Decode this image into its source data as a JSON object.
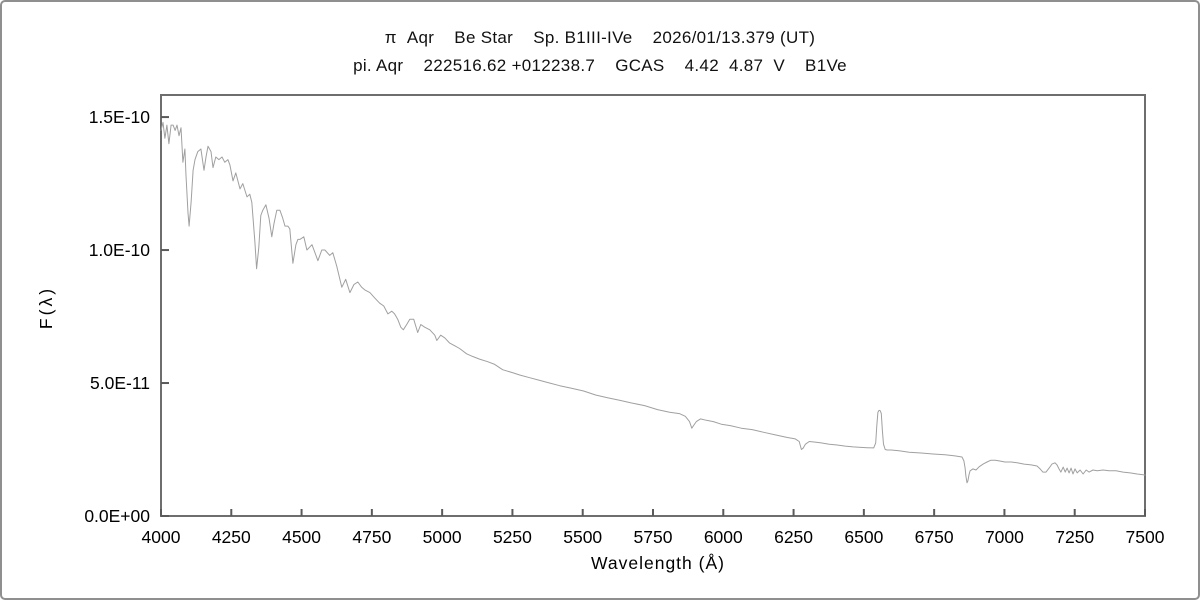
{
  "window": {
    "background": "#ffffff",
    "border_color": "#8f8f8f"
  },
  "header": {
    "title_line1": "π  Aqr    Be Star    Sp. B1III-IVe    2026/01/13.379 (UT)",
    "title_line2": "pi. Aqr    222516.62 +012238.7    GCAS    4.42  4.87  V    B1Ve"
  },
  "chart_data": {
    "type": "line",
    "title": "π Aqr Be Star Sp. B1III-IVe 2026/01/13.379 (UT)",
    "subtitle": "pi. Aqr 222516.62 +012238.7 GCAS 4.42 4.87 V B1Ve",
    "xlabel": "Wavelength (Å)",
    "ylabel": "F(λ)",
    "xlim": [
      4000,
      7500
    ],
    "ylim": [
      0,
      1.583e-10
    ],
    "grid": false,
    "legend": "none",
    "line_color": "#a0a0a0",
    "frame_color": "#6e6e6e",
    "tick_color": "#5a5a5a",
    "x_ticks": [
      4000,
      4250,
      4500,
      4750,
      5000,
      5250,
      5500,
      5750,
      6000,
      6250,
      6500,
      6750,
      7000,
      7250,
      7500
    ],
    "x_tick_labels": [
      "4000",
      "4250",
      "4500",
      "4750",
      "5000",
      "5250",
      "5500",
      "5750",
      "6000",
      "6250",
      "6500",
      "6750",
      "7000",
      "7250",
      "7500"
    ],
    "y_ticks_flux": [
      0,
      5,
      10,
      15
    ],
    "y_tick_labels": [
      "0.0E+00",
      "5.0E-11",
      "1.0E-10",
      "1.5E-10"
    ],
    "flux_scale": 1e-11,
    "features": {
      "absorption_lines": [
        "He I 4026",
        "Hδ 4101",
        "Hγ 4340",
        "He I 4471",
        "Hβ 4861",
        "He I 4922",
        "Na D 5890",
        "telluric 6280",
        "telluric B 6867",
        "telluric H2O 7150-7330"
      ],
      "emission_lines": [
        "Hα 6563"
      ]
    },
    "series": [
      {
        "name": "spectrum",
        "points": [
          [
            4000,
            14.5
          ],
          [
            4007,
            14.8
          ],
          [
            4014,
            14.2
          ],
          [
            4021,
            14.7
          ],
          [
            4028,
            14.0
          ],
          [
            4036,
            14.7
          ],
          [
            4043,
            14.7
          ],
          [
            4050,
            14.5
          ],
          [
            4057,
            14.7
          ],
          [
            4064,
            14.3
          ],
          [
            4071,
            14.6
          ],
          [
            4078,
            13.3
          ],
          [
            4085,
            13.8
          ],
          [
            4089,
            12.8
          ],
          [
            4096,
            11.4
          ],
          [
            4100,
            10.9
          ],
          [
            4107,
            11.8
          ],
          [
            4114,
            13.0
          ],
          [
            4121,
            13.4
          ],
          [
            4131,
            13.7
          ],
          [
            4142,
            13.8
          ],
          [
            4153,
            13.0
          ],
          [
            4160,
            13.5
          ],
          [
            4167,
            13.9
          ],
          [
            4178,
            13.7
          ],
          [
            4185,
            13.1
          ],
          [
            4195,
            13.5
          ],
          [
            4206,
            13.4
          ],
          [
            4217,
            13.5
          ],
          [
            4227,
            13.3
          ],
          [
            4238,
            13.4
          ],
          [
            4245,
            13.2
          ],
          [
            4256,
            12.6
          ],
          [
            4266,
            12.9
          ],
          [
            4281,
            12.3
          ],
          [
            4291,
            12.5
          ],
          [
            4306,
            12.0
          ],
          [
            4316,
            12.1
          ],
          [
            4323,
            11.8
          ],
          [
            4334,
            10.3
          ],
          [
            4340,
            9.3
          ],
          [
            4348,
            10.1
          ],
          [
            4355,
            11.3
          ],
          [
            4362,
            11.5
          ],
          [
            4373,
            11.7
          ],
          [
            4384,
            11.2
          ],
          [
            4394,
            10.5
          ],
          [
            4402,
            11.0
          ],
          [
            4412,
            11.5
          ],
          [
            4423,
            11.5
          ],
          [
            4433,
            11.2
          ],
          [
            4441,
            10.9
          ],
          [
            4451,
            10.9
          ],
          [
            4458,
            10.8
          ],
          [
            4469,
            9.5
          ],
          [
            4480,
            10.2
          ],
          [
            4487,
            10.4
          ],
          [
            4494,
            10.4
          ],
          [
            4508,
            10.5
          ],
          [
            4519,
            10.0
          ],
          [
            4537,
            10.2
          ],
          [
            4558,
            9.6
          ],
          [
            4572,
            10.0
          ],
          [
            4583,
            10.0
          ],
          [
            4600,
            9.8
          ],
          [
            4611,
            9.9
          ],
          [
            4625,
            9.4
          ],
          [
            4643,
            8.6
          ],
          [
            4657,
            8.9
          ],
          [
            4672,
            8.4
          ],
          [
            4686,
            8.7
          ],
          [
            4700,
            8.8
          ],
          [
            4714,
            8.6
          ],
          [
            4725,
            8.5
          ],
          [
            4743,
            8.4
          ],
          [
            4760,
            8.2
          ],
          [
            4778,
            8.0
          ],
          [
            4792,
            7.9
          ],
          [
            4807,
            7.6
          ],
          [
            4821,
            7.7
          ],
          [
            4831,
            7.6
          ],
          [
            4842,
            7.4
          ],
          [
            4853,
            7.1
          ],
          [
            4862,
            7.0
          ],
          [
            4874,
            7.2
          ],
          [
            4885,
            7.4
          ],
          [
            4899,
            7.4
          ],
          [
            4913,
            6.9
          ],
          [
            4924,
            7.2
          ],
          [
            4938,
            7.1
          ],
          [
            4956,
            7.0
          ],
          [
            4974,
            6.8
          ],
          [
            4981,
            6.6
          ],
          [
            4995,
            6.8
          ],
          [
            5009,
            6.7
          ],
          [
            5027,
            6.5
          ],
          [
            5045,
            6.4
          ],
          [
            5062,
            6.3
          ],
          [
            5087,
            6.1
          ],
          [
            5108,
            6.0
          ],
          [
            5133,
            5.9
          ],
          [
            5162,
            5.8
          ],
          [
            5187,
            5.7
          ],
          [
            5215,
            5.5
          ],
          [
            5247,
            5.4
          ],
          [
            5276,
            5.3
          ],
          [
            5311,
            5.2
          ],
          [
            5347,
            5.1
          ],
          [
            5382,
            5.0
          ],
          [
            5418,
            4.9
          ],
          [
            5460,
            4.8
          ],
          [
            5503,
            4.7
          ],
          [
            5546,
            4.55
          ],
          [
            5588,
            4.45
          ],
          [
            5631,
            4.35
          ],
          [
            5674,
            4.25
          ],
          [
            5720,
            4.15
          ],
          [
            5766,
            4.0
          ],
          [
            5809,
            3.9
          ],
          [
            5844,
            3.85
          ],
          [
            5865,
            3.75
          ],
          [
            5880,
            3.55
          ],
          [
            5888,
            3.3
          ],
          [
            5894,
            3.4
          ],
          [
            5904,
            3.55
          ],
          [
            5919,
            3.65
          ],
          [
            5940,
            3.6
          ],
          [
            5965,
            3.55
          ],
          [
            5993,
            3.45
          ],
          [
            6025,
            3.4
          ],
          [
            6064,
            3.3
          ],
          [
            6103,
            3.25
          ],
          [
            6142,
            3.15
          ],
          [
            6185,
            3.05
          ],
          [
            6228,
            2.95
          ],
          [
            6256,
            2.9
          ],
          [
            6270,
            2.8
          ],
          [
            6278,
            2.5
          ],
          [
            6284,
            2.55
          ],
          [
            6292,
            2.7
          ],
          [
            6306,
            2.8
          ],
          [
            6327,
            2.78
          ],
          [
            6348,
            2.75
          ],
          [
            6377,
            2.7
          ],
          [
            6405,
            2.67
          ],
          [
            6434,
            2.63
          ],
          [
            6462,
            2.6
          ],
          [
            6490,
            2.58
          ],
          [
            6512,
            2.57
          ],
          [
            6535,
            2.56
          ],
          [
            6542,
            2.75
          ],
          [
            6546,
            3.4
          ],
          [
            6550,
            3.9
          ],
          [
            6554,
            3.97
          ],
          [
            6558,
            3.96
          ],
          [
            6562,
            3.85
          ],
          [
            6566,
            3.2
          ],
          [
            6570,
            2.7
          ],
          [
            6576,
            2.5
          ],
          [
            6583,
            2.48
          ],
          [
            6597,
            2.48
          ],
          [
            6625,
            2.45
          ],
          [
            6661,
            2.4
          ],
          [
            6704,
            2.37
          ],
          [
            6746,
            2.33
          ],
          [
            6789,
            2.3
          ],
          [
            6824,
            2.26
          ],
          [
            6849,
            2.22
          ],
          [
            6856,
            2.07
          ],
          [
            6860,
            1.8
          ],
          [
            6863,
            1.5
          ],
          [
            6867,
            1.25
          ],
          [
            6870,
            1.32
          ],
          [
            6874,
            1.55
          ],
          [
            6878,
            1.7
          ],
          [
            6888,
            1.77
          ],
          [
            6899,
            1.73
          ],
          [
            6910,
            1.85
          ],
          [
            6924,
            1.95
          ],
          [
            6938,
            2.03
          ],
          [
            6952,
            2.1
          ],
          [
            6967,
            2.1
          ],
          [
            6981,
            2.07
          ],
          [
            7002,
            2.03
          ],
          [
            7024,
            2.03
          ],
          [
            7045,
            2.0
          ],
          [
            7070,
            1.95
          ],
          [
            7095,
            1.92
          ],
          [
            7116,
            1.88
          ],
          [
            7127,
            1.77
          ],
          [
            7137,
            1.65
          ],
          [
            7148,
            1.65
          ],
          [
            7159,
            1.8
          ],
          [
            7169,
            1.95
          ],
          [
            7180,
            2.0
          ],
          [
            7187,
            1.92
          ],
          [
            7194,
            1.77
          ],
          [
            7201,
            1.65
          ],
          [
            7209,
            1.84
          ],
          [
            7216,
            1.65
          ],
          [
            7223,
            1.8
          ],
          [
            7230,
            1.62
          ],
          [
            7237,
            1.8
          ],
          [
            7244,
            1.58
          ],
          [
            7251,
            1.77
          ],
          [
            7259,
            1.62
          ],
          [
            7269,
            1.73
          ],
          [
            7280,
            1.58
          ],
          [
            7291,
            1.73
          ],
          [
            7301,
            1.65
          ],
          [
            7315,
            1.73
          ],
          [
            7330,
            1.7
          ],
          [
            7351,
            1.73
          ],
          [
            7372,
            1.7
          ],
          [
            7397,
            1.7
          ],
          [
            7422,
            1.65
          ],
          [
            7447,
            1.62
          ],
          [
            7472,
            1.58
          ],
          [
            7500,
            1.54
          ]
        ]
      }
    ]
  }
}
